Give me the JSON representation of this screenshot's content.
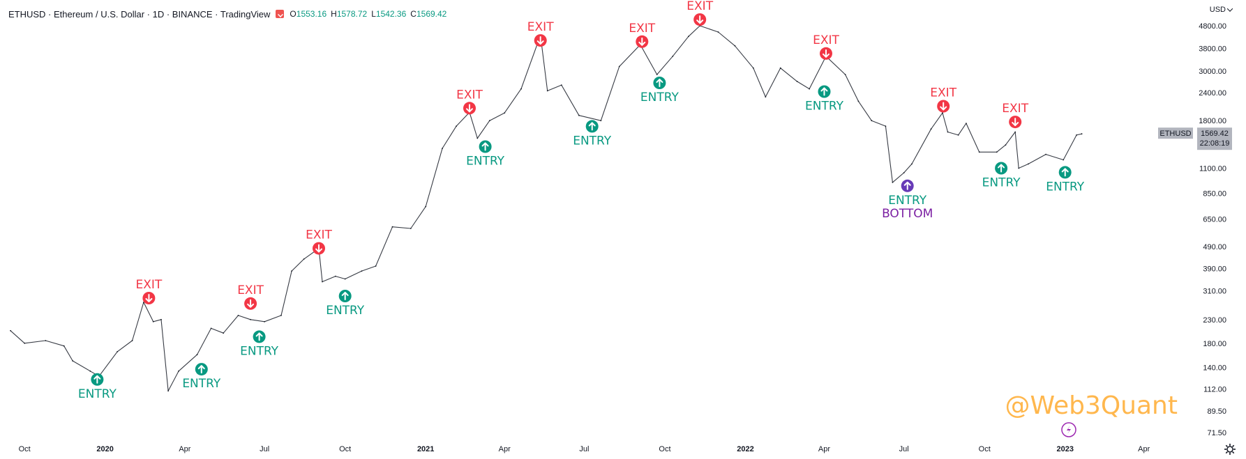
{
  "header": {
    "symbol_title": "ETHUSD · Ethereum / U.S. Dollar · 1D · BINANCE · TradingView",
    "ohlc": [
      {
        "key": "O",
        "value": "1553.16"
      },
      {
        "key": "H",
        "value": "1578.72"
      },
      {
        "key": "L",
        "value": "1542.36"
      },
      {
        "key": "C",
        "value": "1569.42"
      }
    ]
  },
  "currency_selector": "USD",
  "watermark": "@Web3Quant",
  "colors": {
    "exit": "#f23645",
    "entry": "#089981",
    "bottom": "#7b1fa2",
    "bottom_marker": "#673ab7",
    "price_line": "#131722",
    "watermark": "#ffb74d",
    "last_price_tag": "#b2b5be"
  },
  "last_price": {
    "symbol": "ETHUSD",
    "price": "1569.42",
    "countdown": "22:08:19"
  },
  "chart_data": {
    "type": "line",
    "y_scale": "log",
    "y_ticks": [
      "4800.00",
      "3800.00",
      "3000.00",
      "2400.00",
      "1800.00",
      "1100.00",
      "850.00",
      "650.00",
      "490.00",
      "390.00",
      "310.00",
      "230.00",
      "180.00",
      "140.00",
      "112.00",
      "89.50",
      "71.50"
    ],
    "x_ticks": [
      {
        "label": "Oct",
        "date": "2019-10-01",
        "bold": false
      },
      {
        "label": "2020",
        "date": "2020-01-01",
        "bold": true
      },
      {
        "label": "Apr",
        "date": "2020-04-01",
        "bold": false
      },
      {
        "label": "Jul",
        "date": "2020-07-01",
        "bold": false
      },
      {
        "label": "Oct",
        "date": "2020-10-01",
        "bold": false
      },
      {
        "label": "2021",
        "date": "2021-01-01",
        "bold": true
      },
      {
        "label": "Apr",
        "date": "2021-04-01",
        "bold": false
      },
      {
        "label": "Jul",
        "date": "2021-07-01",
        "bold": false
      },
      {
        "label": "Oct",
        "date": "2021-10-01",
        "bold": false
      },
      {
        "label": "2022",
        "date": "2022-01-01",
        "bold": true
      },
      {
        "label": "Apr",
        "date": "2022-04-01",
        "bold": false
      },
      {
        "label": "Jul",
        "date": "2022-07-01",
        "bold": false
      },
      {
        "label": "Oct",
        "date": "2022-10-01",
        "bold": false
      },
      {
        "label": "2023",
        "date": "2023-01-01",
        "bold": true
      },
      {
        "label": "Apr",
        "date": "2023-04-01",
        "bold": false
      }
    ],
    "series": [
      {
        "points": [
          [
            "2019-09-15",
            205
          ],
          [
            "2019-10-01",
            180
          ],
          [
            "2019-10-25",
            185
          ],
          [
            "2019-11-15",
            175
          ],
          [
            "2019-11-25",
            150
          ],
          [
            "2019-12-15",
            135
          ],
          [
            "2019-12-25",
            128
          ],
          [
            "2020-01-15",
            165
          ],
          [
            "2020-02-01",
            185
          ],
          [
            "2020-02-14",
            275
          ],
          [
            "2020-02-25",
            225
          ],
          [
            "2020-03-05",
            230
          ],
          [
            "2020-03-13",
            110
          ],
          [
            "2020-03-25",
            135
          ],
          [
            "2020-04-15",
            160
          ],
          [
            "2020-05-01",
            210
          ],
          [
            "2020-05-15",
            200
          ],
          [
            "2020-06-01",
            240
          ],
          [
            "2020-06-15",
            230
          ],
          [
            "2020-07-01",
            225
          ],
          [
            "2020-07-20",
            240
          ],
          [
            "2020-08-01",
            380
          ],
          [
            "2020-08-15",
            430
          ],
          [
            "2020-09-01",
            480
          ],
          [
            "2020-09-05",
            340
          ],
          [
            "2020-09-20",
            360
          ],
          [
            "2020-10-01",
            350
          ],
          [
            "2020-10-20",
            380
          ],
          [
            "2020-11-05",
            400
          ],
          [
            "2020-11-24",
            600
          ],
          [
            "2020-12-15",
            590
          ],
          [
            "2021-01-01",
            740
          ],
          [
            "2021-01-20",
            1350
          ],
          [
            "2021-02-05",
            1700
          ],
          [
            "2021-02-20",
            1960
          ],
          [
            "2021-03-01",
            1500
          ],
          [
            "2021-03-15",
            1800
          ],
          [
            "2021-04-01",
            1950
          ],
          [
            "2021-04-20",
            2500
          ],
          [
            "2021-05-12",
            4350
          ],
          [
            "2021-05-20",
            2450
          ],
          [
            "2021-06-05",
            2600
          ],
          [
            "2021-06-25",
            1900
          ],
          [
            "2021-07-20",
            1800
          ],
          [
            "2021-08-10",
            3150
          ],
          [
            "2021-09-03",
            3950
          ],
          [
            "2021-09-22",
            2900
          ],
          [
            "2021-10-10",
            3500
          ],
          [
            "2021-10-28",
            4300
          ],
          [
            "2021-11-10",
            4800
          ],
          [
            "2021-12-01",
            4500
          ],
          [
            "2021-12-20",
            3900
          ],
          [
            "2022-01-10",
            3100
          ],
          [
            "2022-01-24",
            2300
          ],
          [
            "2022-02-10",
            3100
          ],
          [
            "2022-03-01",
            2700
          ],
          [
            "2022-03-15",
            2500
          ],
          [
            "2022-04-03",
            3500
          ],
          [
            "2022-04-25",
            2900
          ],
          [
            "2022-05-10",
            2200
          ],
          [
            "2022-05-25",
            1800
          ],
          [
            "2022-06-10",
            1700
          ],
          [
            "2022-06-18",
            950
          ],
          [
            "2022-07-01",
            1050
          ],
          [
            "2022-07-10",
            1150
          ],
          [
            "2022-08-01",
            1650
          ],
          [
            "2022-08-14",
            1950
          ],
          [
            "2022-08-20",
            1600
          ],
          [
            "2022-09-01",
            1550
          ],
          [
            "2022-09-10",
            1750
          ],
          [
            "2022-09-25",
            1300
          ],
          [
            "2022-10-15",
            1300
          ],
          [
            "2022-10-25",
            1400
          ],
          [
            "2022-11-05",
            1600
          ],
          [
            "2022-11-09",
            1100
          ],
          [
            "2022-11-20",
            1150
          ],
          [
            "2022-12-10",
            1270
          ],
          [
            "2022-12-30",
            1200
          ],
          [
            "2023-01-14",
            1550
          ],
          [
            "2023-01-20",
            1569.42
          ]
        ]
      }
    ],
    "signals": [
      {
        "kind": "entry",
        "label": "ENTRY",
        "date": "2019-12-23",
        "price": 135
      },
      {
        "kind": "exit",
        "label": "EXIT",
        "date": "2020-02-20",
        "price": 275
      },
      {
        "kind": "entry",
        "label": "ENTRY",
        "date": "2020-04-20",
        "price": 150
      },
      {
        "kind": "exit",
        "label": "EXIT",
        "date": "2020-06-15",
        "price": 260
      },
      {
        "kind": "entry",
        "label": "ENTRY",
        "date": "2020-06-25",
        "price": 210
      },
      {
        "kind": "exit",
        "label": "EXIT",
        "date": "2020-09-01",
        "price": 460
      },
      {
        "kind": "entry",
        "label": "ENTRY",
        "date": "2020-10-01",
        "price": 320
      },
      {
        "kind": "exit",
        "label": "EXIT",
        "date": "2021-02-20",
        "price": 1960
      },
      {
        "kind": "entry",
        "label": "ENTRY",
        "date": "2021-03-10",
        "price": 1500
      },
      {
        "kind": "exit",
        "label": "EXIT",
        "date": "2021-05-12",
        "price": 3950
      },
      {
        "kind": "entry",
        "label": "ENTRY",
        "date": "2021-07-10",
        "price": 1850
      },
      {
        "kind": "exit",
        "label": "EXIT",
        "date": "2021-09-05",
        "price": 3900
      },
      {
        "kind": "entry",
        "label": "ENTRY",
        "date": "2021-09-25",
        "price": 2900
      },
      {
        "kind": "exit",
        "label": "EXIT",
        "date": "2021-11-10",
        "price": 4900
      },
      {
        "kind": "exit",
        "label": "EXIT",
        "date": "2022-04-03",
        "price": 3450
      },
      {
        "kind": "entry",
        "label": "ENTRY",
        "date": "2022-04-01",
        "price": 2650
      },
      {
        "kind": "bottom",
        "label": "ENTRY",
        "sublabel": "BOTTOM",
        "date": "2022-07-05",
        "price": 1000
      },
      {
        "kind": "exit",
        "label": "EXIT",
        "date": "2022-08-15",
        "price": 2000
      },
      {
        "kind": "entry",
        "label": "ENTRY",
        "date": "2022-10-20",
        "price": 1200
      },
      {
        "kind": "exit",
        "label": "EXIT",
        "date": "2022-11-05",
        "price": 1700
      },
      {
        "kind": "entry",
        "label": "ENTRY",
        "date": "2023-01-01",
        "price": 1150
      }
    ]
  }
}
